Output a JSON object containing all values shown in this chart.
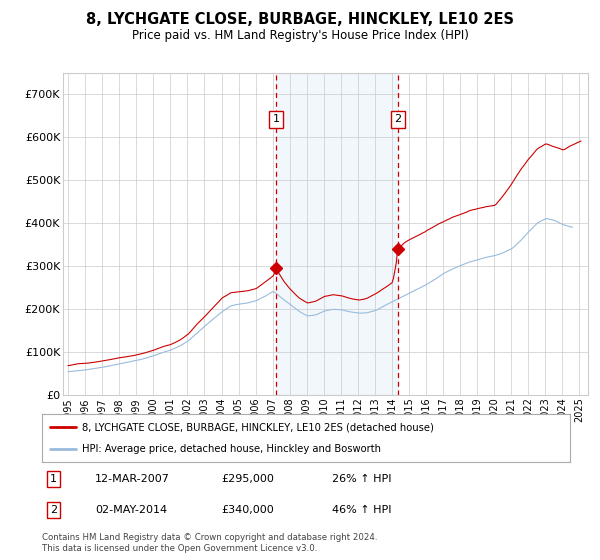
{
  "title": "8, LYCHGATE CLOSE, BURBAGE, HINCKLEY, LE10 2ES",
  "subtitle": "Price paid vs. HM Land Registry's House Price Index (HPI)",
  "legend_line1": "8, LYCHGATE CLOSE, BURBAGE, HINCKLEY, LE10 2ES (detached house)",
  "legend_line2": "HPI: Average price, detached house, Hinckley and Bosworth",
  "footer": "Contains HM Land Registry data © Crown copyright and database right 2024.\nThis data is licensed under the Open Government Licence v3.0.",
  "transaction1_date": "12-MAR-2007",
  "transaction1_price": "£295,000",
  "transaction1_hpi": "26% ↑ HPI",
  "transaction2_date": "02-MAY-2014",
  "transaction2_price": "£340,000",
  "transaction2_hpi": "46% ↑ HPI",
  "ylim": [
    0,
    750000
  ],
  "yticks": [
    0,
    100000,
    200000,
    300000,
    400000,
    500000,
    600000,
    700000
  ],
  "ytick_labels": [
    "£0",
    "£100K",
    "£200K",
    "£300K",
    "£400K",
    "£500K",
    "£600K",
    "£700K"
  ],
  "background_color": "#ffffff",
  "plot_bg_color": "#ffffff",
  "grid_color": "#cccccc",
  "red_color": "#cc0000",
  "blue_color": "#99bbdd",
  "marker1_x": 2007.19,
  "marker1_y": 295000,
  "marker2_x": 2014.36,
  "marker2_y": 340000,
  "vline1_x": 2007.19,
  "vline2_x": 2014.36,
  "xmin": 1994.7,
  "xmax": 2025.5
}
